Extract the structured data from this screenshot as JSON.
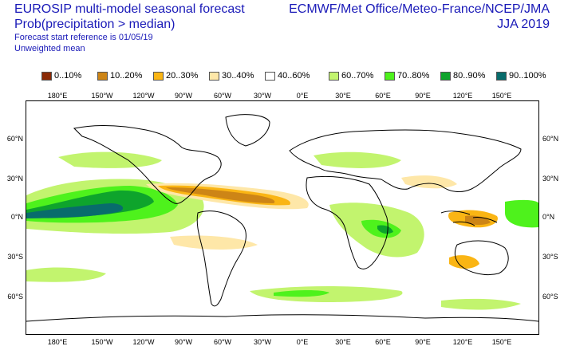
{
  "header": {
    "title_line1": "EUROSIP multi-model seasonal forecast",
    "title_line2": "Prob(precipitation > median)",
    "start_reference": "Forecast start reference is 01/05/19",
    "mean_type": "Unweighted mean",
    "centres": "ECMWF/Met Office/Meteo-France/NCEP/JMA",
    "season": "JJA 2019"
  },
  "legend": [
    {
      "label": "0..10%",
      "color": "#8b2a06"
    },
    {
      "label": "10..20%",
      "color": "#cd8516"
    },
    {
      "label": "20..30%",
      "color": "#fab514"
    },
    {
      "label": "30..40%",
      "color": "#fee7a8"
    },
    {
      "label": "40..60%",
      "color": "#ffffff"
    },
    {
      "label": "60..70%",
      "color": "#c2f46e"
    },
    {
      "label": "70..80%",
      "color": "#4ef21c"
    },
    {
      "label": "80..90%",
      "color": "#0ea42c"
    },
    {
      "label": "90..100%",
      "color": "#086c6c"
    }
  ],
  "map": {
    "lon_ticks_top": [
      "180°E",
      "150°W",
      "120°W",
      "90°W",
      "60°W",
      "30°W",
      "0°E",
      "30°E",
      "60°E",
      "90°E",
      "120°E",
      "150°E"
    ],
    "lon_ticks_bottom": [
      "180°E",
      "150°W",
      "120°W",
      "90°W",
      "60°W",
      "30°W",
      "0°E",
      "30°E",
      "60°E",
      "90°E",
      "120°E",
      "150°E"
    ],
    "lat_ticks_left": [
      "60°N",
      "30°N",
      "0°N",
      "30°S",
      "60°S"
    ],
    "lat_ticks_right": [
      "60°N",
      "30°N",
      "0°N",
      "30°S",
      "60°S"
    ]
  }
}
